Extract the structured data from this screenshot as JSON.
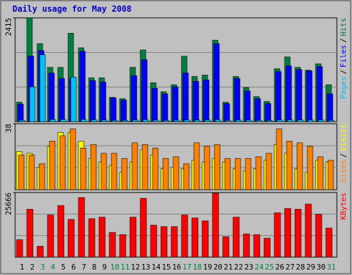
{
  "chart_data": [
    {
      "type": "bar",
      "title": "Daily usage for May 2008",
      "ylim": [
        0,
        2415
      ],
      "yticks": [
        2415
      ],
      "legend_separator": "/",
      "series": [
        {
          "name": "Hits",
          "color": "#008040",
          "values": [
            454,
            2415,
            1815,
            1264,
            1264,
            2058,
            1718,
            1021,
            1021,
            567,
            535,
            1264,
            1669,
            907,
            697,
            859,
            1523,
            1053,
            1086,
            1896,
            454,
            1053,
            794,
            583,
            470,
            1232,
            1507,
            1264,
            1200,
            1345,
            859
          ]
        },
        {
          "name": "Files",
          "color": "#0000FF",
          "values": [
            405,
            1523,
            1653,
            1134,
            1005,
            1005,
            1637,
            956,
            924,
            551,
            502,
            1070,
            1442,
            778,
            648,
            810,
            1134,
            940,
            972,
            1815,
            421,
            1005,
            713,
            535,
            421,
            1167,
            1296,
            1215,
            1180,
            1280,
            648
          ]
        },
        {
          "name": "Pages",
          "color": "#00C0FF",
          "values": [
            32,
            810,
            1556,
            50,
            50,
            1037,
            50,
            45,
            40,
            30,
            30,
            40,
            45,
            35,
            30,
            35,
            40,
            38,
            40,
            45,
            30,
            38,
            35,
            30,
            28,
            40,
            42,
            40,
            38,
            40,
            30
          ]
        }
      ]
    },
    {
      "type": "bar",
      "ylim": [
        0,
        38
      ],
      "yticks": [
        38
      ],
      "legend_separator": "/",
      "series": [
        {
          "name": "Visits",
          "color": "#FFFF00",
          "values": [
            22,
            21,
            13,
            25,
            33,
            33,
            28,
            18,
            16,
            14,
            10,
            16,
            23,
            20,
            12,
            13,
            12,
            17,
            16,
            18,
            16,
            12,
            11,
            12,
            17,
            26,
            21,
            12,
            10,
            17,
            16
          ]
        },
        {
          "name": "Sites",
          "color": "#FF8000",
          "values": [
            20,
            20,
            15,
            28,
            31,
            35,
            24,
            26,
            21,
            21,
            18,
            27,
            26,
            24,
            18,
            19,
            15,
            27,
            25,
            26,
            18,
            18,
            18,
            19,
            21,
            35,
            28,
            27,
            25,
            19,
            17
          ]
        }
      ]
    },
    {
      "type": "bar",
      "ylim": [
        0,
        25666
      ],
      "yticks": [
        25666
      ],
      "categories": [
        "1",
        "2",
        "3",
        "4",
        "5",
        "6",
        "7",
        "8",
        "9",
        "10",
        "11",
        "12",
        "13",
        "14",
        "15",
        "16",
        "17",
        "18",
        "19",
        "20",
        "21",
        "22",
        "23",
        "24",
        "25",
        "26",
        "27",
        "28",
        "29",
        "30",
        "31"
      ],
      "label_colors": [
        "#000000",
        "#000000",
        "#008040",
        "#008040",
        "#000000",
        "#000000",
        "#000000",
        "#000000",
        "#000000",
        "#008040",
        "#008040",
        "#000000",
        "#000000",
        "#000000",
        "#000000",
        "#000000",
        "#008040",
        "#008040",
        "#000000",
        "#000000",
        "#000000",
        "#000000",
        "#000000",
        "#008040",
        "#008040",
        "#000000",
        "#000000",
        "#000000",
        "#000000",
        "#000000",
        "#008040"
      ],
      "series": [
        {
          "name": "KBytes",
          "color": "#FF0000",
          "values": [
            6921,
            19032,
            4326,
            16727,
            20475,
            14996,
            23647,
            15284,
            15861,
            9805,
            8940,
            15861,
            23359,
            12689,
            12112,
            12112,
            16727,
            15573,
            14419,
            25378,
            8075,
            15861,
            9228,
            8940,
            7498,
            17591,
            19321,
            19032,
            21052,
            17014,
            11535
          ]
        }
      ]
    }
  ]
}
